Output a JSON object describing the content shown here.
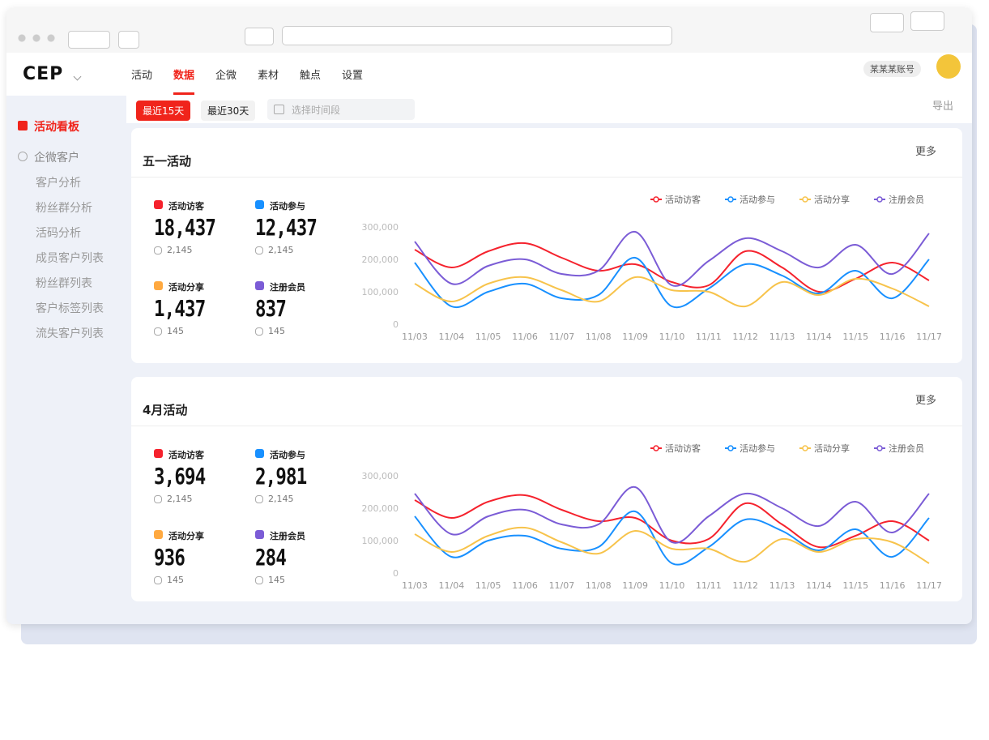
{
  "header": {
    "logo": "CEP",
    "nav": [
      "活动",
      "数据",
      "企微",
      "素材",
      "触点",
      "设置"
    ],
    "active_nav": 1,
    "account": "某某某账号"
  },
  "sidebar": {
    "items": [
      {
        "label": "活动看板",
        "active": true,
        "level": 1
      },
      {
        "label": "企微客户",
        "active": false,
        "level": 1
      },
      {
        "label": "客户分析",
        "active": false,
        "level": 2
      },
      {
        "label": "粉丝群分析",
        "active": false,
        "level": 2
      },
      {
        "label": "活码分析",
        "active": false,
        "level": 2
      },
      {
        "label": "成员客户列表",
        "active": false,
        "level": 2
      },
      {
        "label": "粉丝群列表",
        "active": false,
        "level": 2
      },
      {
        "label": "客户标签列表",
        "active": false,
        "level": 2
      },
      {
        "label": "流失客户列表",
        "active": false,
        "level": 2
      }
    ]
  },
  "toolbar": {
    "ranges": [
      "最近15天",
      "最近30天"
    ],
    "active_range": 0,
    "date_placeholder": "选择时间段",
    "export": "导出"
  },
  "panels": [
    {
      "title": "五一活动",
      "more": "更多",
      "stats": [
        {
          "label": "活动访客",
          "value": "18,437",
          "delta": "2,145",
          "color": "#f5222d"
        },
        {
          "label": "活动参与",
          "value": "12,437",
          "delta": "2,145",
          "color": "#1890ff"
        },
        {
          "label": "活动分享",
          "value": "1,437",
          "delta": "145",
          "color": "#ffa940"
        },
        {
          "label": "注册会员",
          "value": "837",
          "delta": "145",
          "color": "#7b5cd6"
        }
      ],
      "chart": {
        "type": "line",
        "categories": [
          "11/03",
          "11/04",
          "11/05",
          "11/06",
          "11/07",
          "11/08",
          "11/09",
          "11/10",
          "11/11",
          "11/12",
          "11/13",
          "11/14",
          "11/15",
          "11/16",
          "11/17"
        ],
        "ylim": [
          0,
          300000
        ],
        "yticks": [
          0,
          {
            "value": 100000,
            "label": "100,000"
          },
          {
            "value": 200000,
            "label": "200,000"
          },
          {
            "value": 300000,
            "label": "300,000"
          }
        ],
        "series": [
          {
            "name": "活动访客",
            "color": "#f5222d",
            "values": [
              230000,
              175000,
              225000,
              250000,
              205000,
              165000,
              185000,
              130000,
              120000,
              225000,
              175000,
              100000,
              140000,
              190000,
              135000
            ]
          },
          {
            "name": "活动参与",
            "color": "#1890ff",
            "values": [
              190000,
              55000,
              100000,
              125000,
              80000,
              90000,
              205000,
              55000,
              110000,
              185000,
              150000,
              95000,
              165000,
              80000,
              200000
            ]
          },
          {
            "name": "活动分享",
            "color": "#f7c34b",
            "values": [
              125000,
              70000,
              125000,
              145000,
              105000,
              70000,
              145000,
              105000,
              100000,
              55000,
              130000,
              90000,
              140000,
              110000,
              55000
            ]
          },
          {
            "name": "注册会员",
            "color": "#7b5cd6",
            "values": [
              255000,
              125000,
              180000,
              200000,
              155000,
              165000,
              285000,
              120000,
              195000,
              265000,
              225000,
              175000,
              245000,
              155000,
              280000
            ]
          }
        ]
      }
    },
    {
      "title": "4月活动",
      "more": "更多",
      "stats": [
        {
          "label": "活动访客",
          "value": "3,694",
          "delta": "2,145",
          "color": "#f5222d"
        },
        {
          "label": "活动参与",
          "value": "2,981",
          "delta": "2,145",
          "color": "#1890ff"
        },
        {
          "label": "活动分享",
          "value": "936",
          "delta": "145",
          "color": "#ffa940"
        },
        {
          "label": "注册会员",
          "value": "284",
          "delta": "145",
          "color": "#7b5cd6"
        }
      ],
      "chart": {
        "type": "line",
        "categories": [
          "11/03",
          "11/04",
          "11/05",
          "11/06",
          "11/07",
          "11/08",
          "11/09",
          "11/10",
          "11/11",
          "11/12",
          "11/13",
          "11/14",
          "11/15",
          "11/16",
          "11/17"
        ],
        "ylim": [
          0,
          300000
        ],
        "yticks": [
          0,
          {
            "value": 100000,
            "label": "100,000"
          },
          {
            "value": 200000,
            "label": "200,000"
          },
          {
            "value": 300000,
            "label": "300,000"
          }
        ],
        "series": [
          {
            "name": "活动访客",
            "color": "#f5222d",
            "values": [
              225000,
              170000,
              220000,
              240000,
              195000,
              160000,
              170000,
              100000,
              105000,
              215000,
              150000,
              80000,
              115000,
              160000,
              100000
            ]
          },
          {
            "name": "活动参与",
            "color": "#1890ff",
            "values": [
              175000,
              50000,
              100000,
              115000,
              75000,
              80000,
              190000,
              30000,
              80000,
              165000,
              130000,
              70000,
              135000,
              50000,
              170000
            ]
          },
          {
            "name": "活动分享",
            "color": "#f7c34b",
            "values": [
              120000,
              65000,
              115000,
              140000,
              95000,
              60000,
              130000,
              75000,
              75000,
              35000,
              105000,
              65000,
              105000,
              95000,
              30000
            ]
          },
          {
            "name": "注册会员",
            "color": "#7b5cd6",
            "values": [
              245000,
              120000,
              175000,
              195000,
              150000,
              150000,
              265000,
              95000,
              175000,
              245000,
              200000,
              145000,
              220000,
              125000,
              245000
            ]
          }
        ]
      }
    }
  ]
}
